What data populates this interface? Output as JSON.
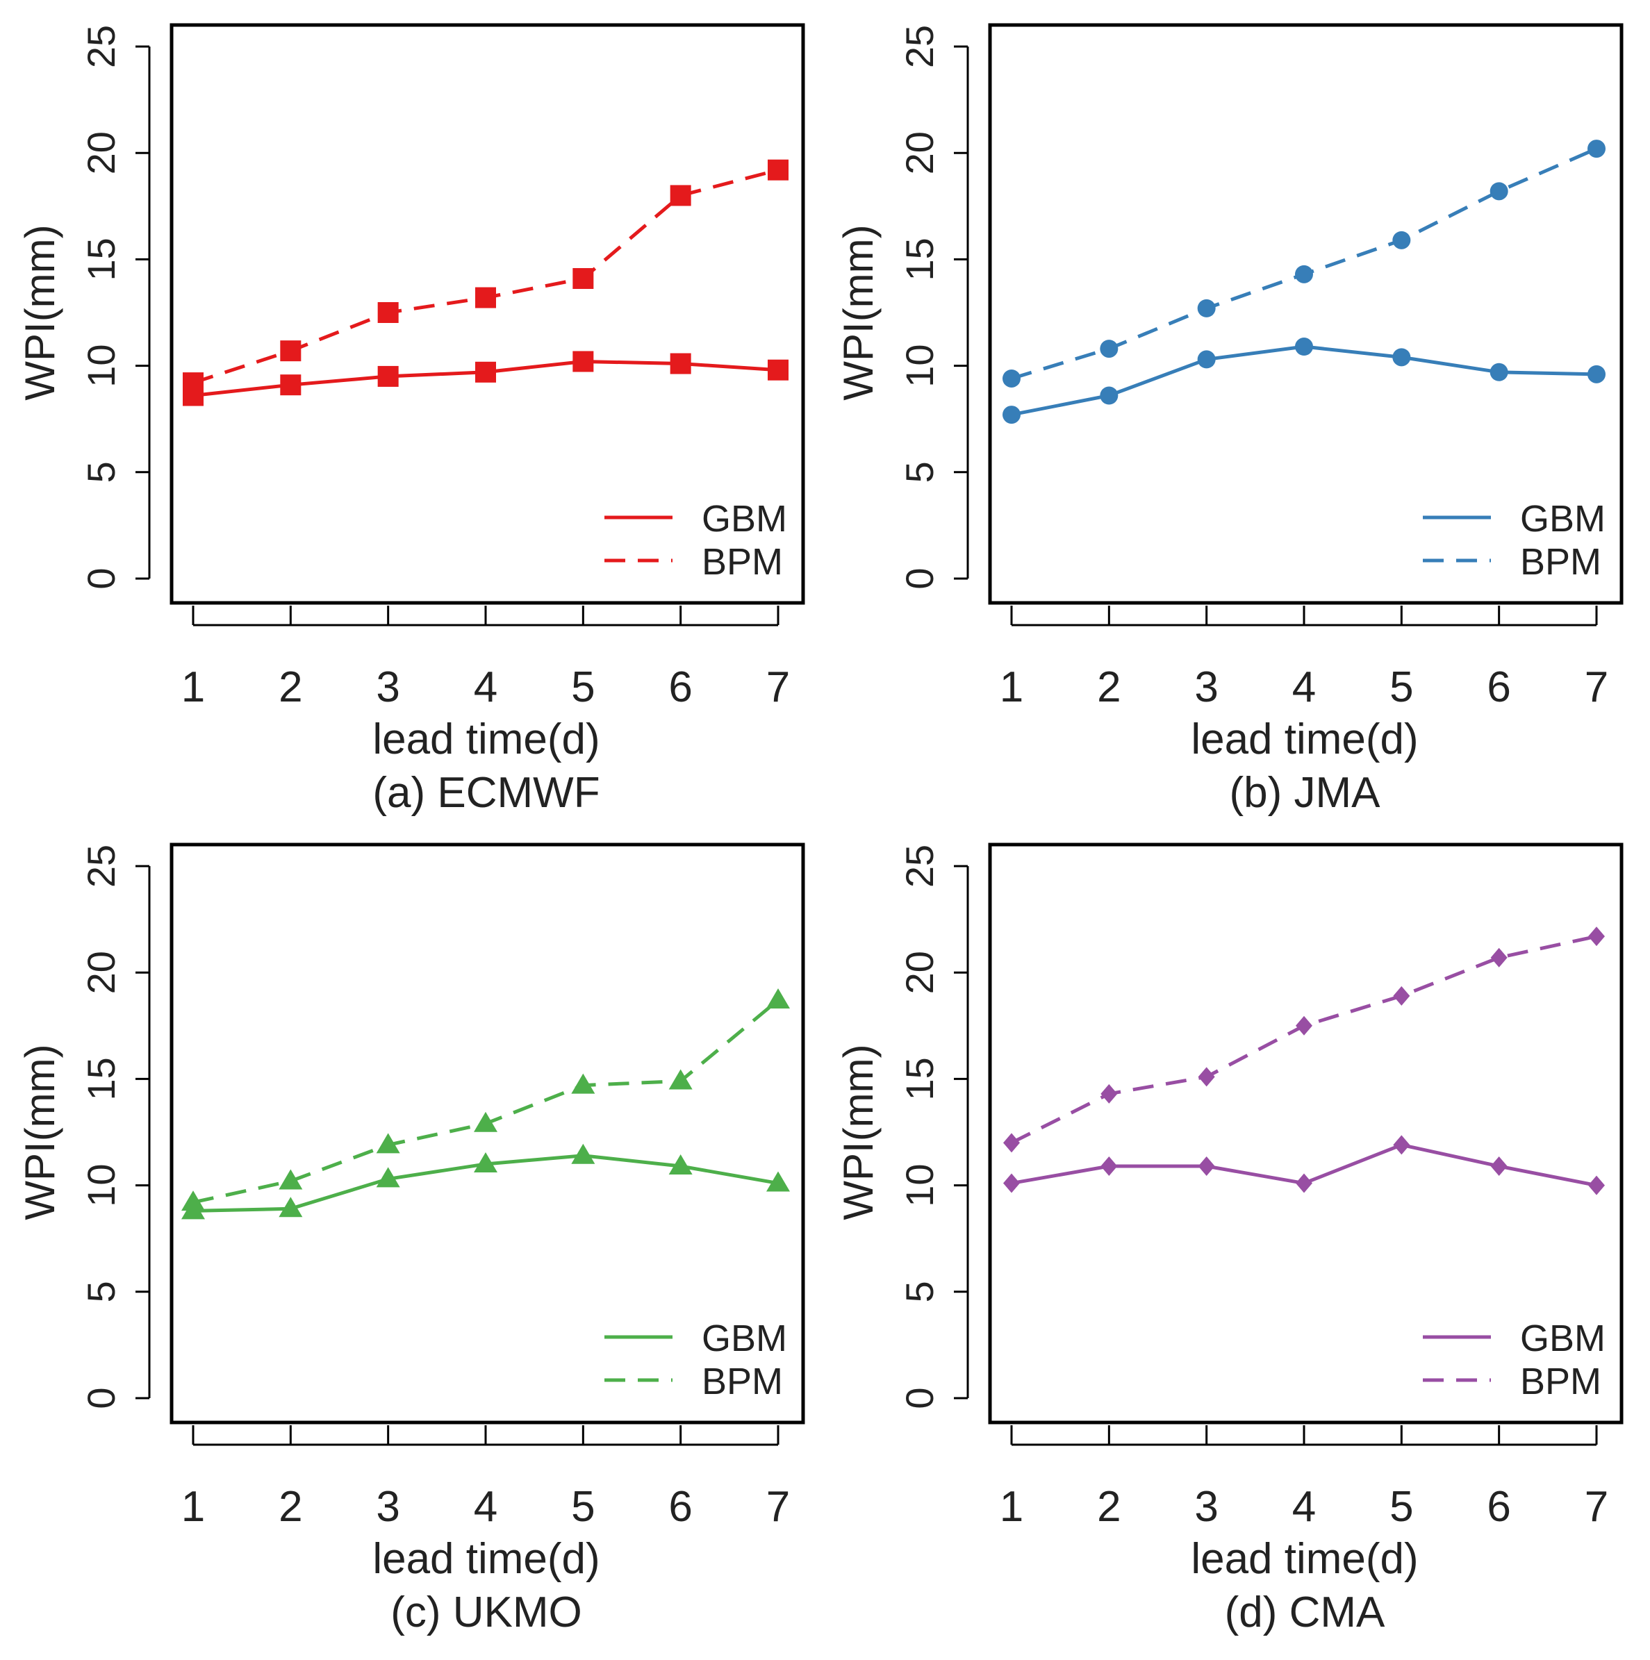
{
  "chart_data": [
    {
      "type": "line",
      "title": "(a) ECMWF",
      "xlabel": "lead time(d)",
      "ylabel": "WPI(mm)",
      "x": [
        1,
        2,
        3,
        4,
        5,
        6,
        7
      ],
      "x_ticks": [
        "1",
        "2",
        "3",
        "4",
        "5",
        "6",
        "7"
      ],
      "y_ticks": [
        "0",
        "5",
        "10",
        "15",
        "20",
        "25"
      ],
      "ylim": [
        0,
        25
      ],
      "color": "#e41a1c",
      "marker": "square",
      "legend_position": "bottom-right",
      "series": [
        {
          "name": "GBM",
          "style": "solid",
          "values": [
            8.6,
            9.1,
            9.5,
            9.7,
            10.2,
            10.1,
            9.8
          ]
        },
        {
          "name": "BPM",
          "style": "dashed",
          "values": [
            9.2,
            10.7,
            12.5,
            13.2,
            14.1,
            18.0,
            19.2
          ]
        }
      ]
    },
    {
      "type": "line",
      "title": "(b) JMA",
      "xlabel": "lead time(d)",
      "ylabel": "WPI(mm)",
      "x": [
        1,
        2,
        3,
        4,
        5,
        6,
        7
      ],
      "x_ticks": [
        "1",
        "2",
        "3",
        "4",
        "5",
        "6",
        "7"
      ],
      "y_ticks": [
        "0",
        "5",
        "10",
        "15",
        "20",
        "25"
      ],
      "ylim": [
        0,
        25
      ],
      "color": "#377eb8",
      "marker": "circle",
      "legend_position": "bottom-right",
      "series": [
        {
          "name": "GBM",
          "style": "solid",
          "values": [
            7.7,
            8.6,
            10.3,
            10.9,
            10.4,
            9.7,
            9.6
          ]
        },
        {
          "name": "BPM",
          "style": "dashed",
          "values": [
            9.4,
            10.8,
            12.7,
            14.3,
            15.9,
            18.2,
            20.2
          ]
        }
      ]
    },
    {
      "type": "line",
      "title": "(c) UKMO",
      "xlabel": "lead time(d)",
      "ylabel": "WPI(mm)",
      "x": [
        1,
        2,
        3,
        4,
        5,
        6,
        7
      ],
      "x_ticks": [
        "1",
        "2",
        "3",
        "4",
        "5",
        "6",
        "7"
      ],
      "y_ticks": [
        "0",
        "5",
        "10",
        "15",
        "20",
        "25"
      ],
      "ylim": [
        0,
        25
      ],
      "color": "#4daf4a",
      "marker": "triangle",
      "legend_position": "bottom-right",
      "series": [
        {
          "name": "GBM",
          "style": "solid",
          "values": [
            8.8,
            8.9,
            10.3,
            11.0,
            11.4,
            10.9,
            10.1
          ]
        },
        {
          "name": "BPM",
          "style": "dashed",
          "values": [
            9.2,
            10.2,
            11.9,
            12.9,
            14.7,
            14.9,
            18.7
          ]
        }
      ]
    },
    {
      "type": "line",
      "title": "(d) CMA",
      "xlabel": "lead time(d)",
      "ylabel": "WPI(mm)",
      "x": [
        1,
        2,
        3,
        4,
        5,
        6,
        7
      ],
      "x_ticks": [
        "1",
        "2",
        "3",
        "4",
        "5",
        "6",
        "7"
      ],
      "y_ticks": [
        "0",
        "5",
        "10",
        "15",
        "20",
        "25"
      ],
      "ylim": [
        0,
        25
      ],
      "color": "#984ea3",
      "marker": "diamond",
      "legend_position": "bottom-right",
      "series": [
        {
          "name": "GBM",
          "style": "solid",
          "values": [
            10.1,
            10.9,
            10.9,
            10.1,
            11.9,
            10.9,
            10.0
          ]
        },
        {
          "name": "BPM",
          "style": "dashed",
          "values": [
            12.0,
            14.3,
            15.1,
            17.5,
            18.9,
            20.7,
            21.7
          ]
        }
      ]
    }
  ]
}
